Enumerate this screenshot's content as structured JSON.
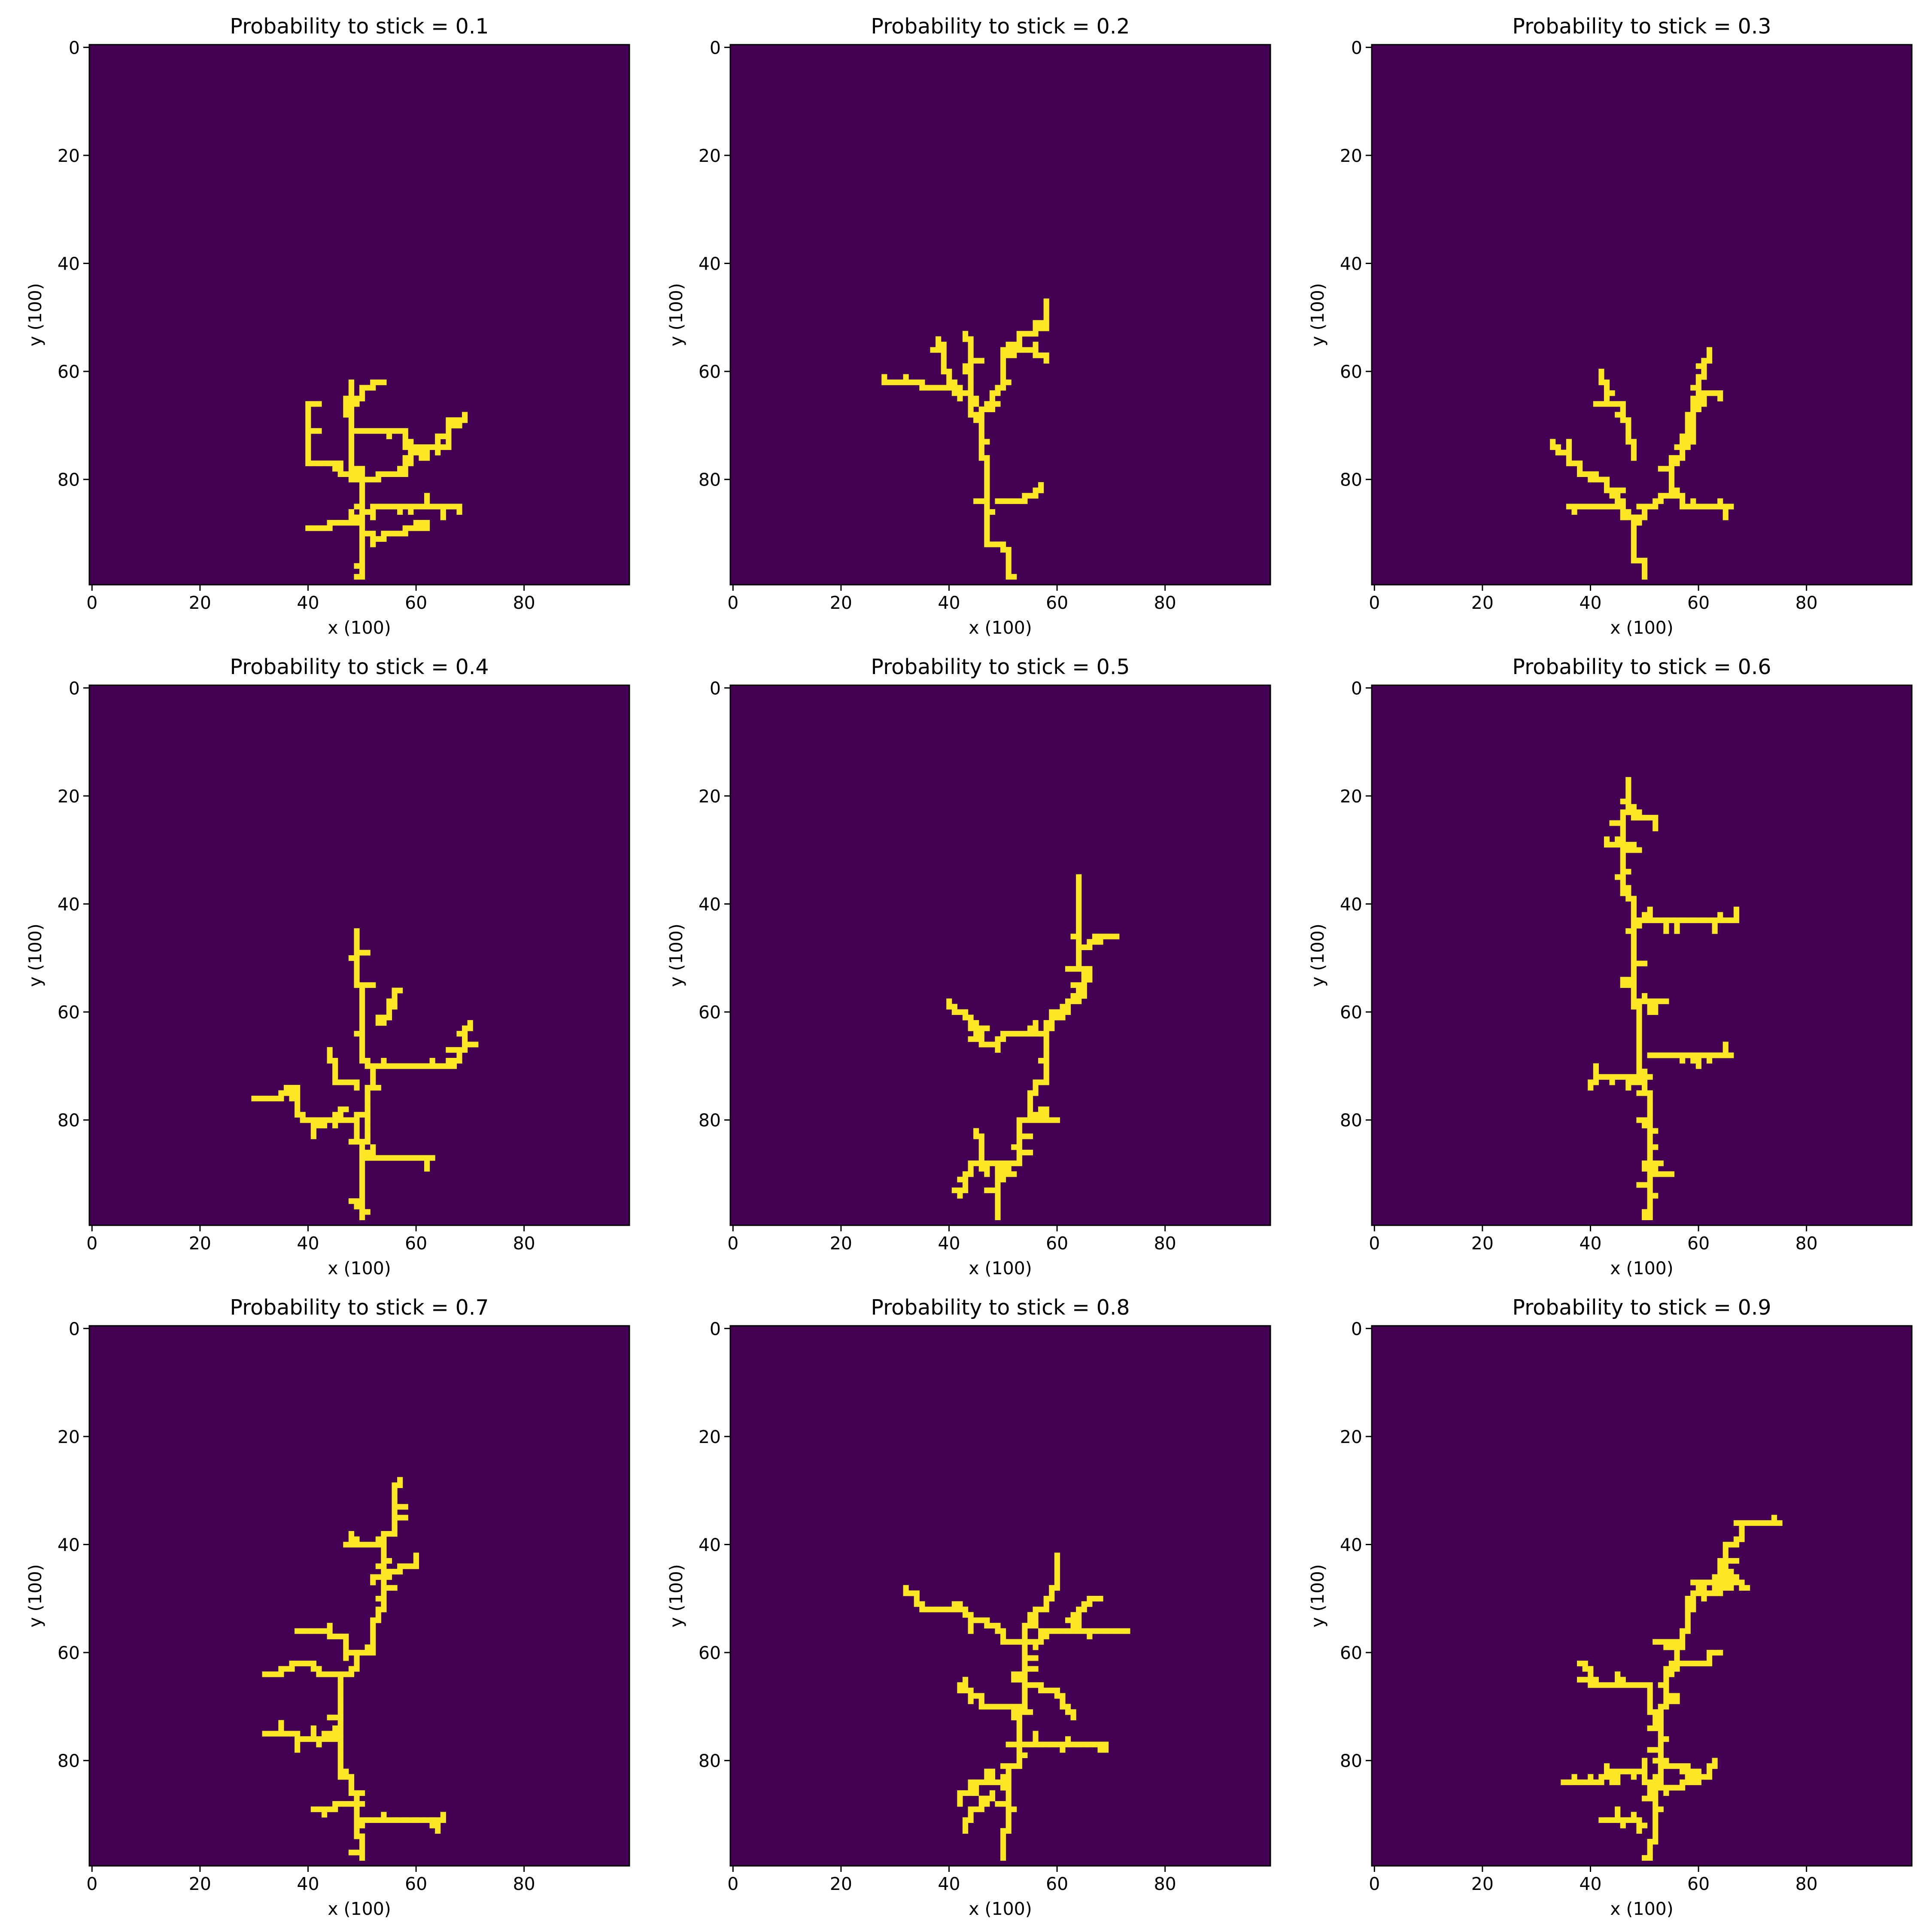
{
  "colors": {
    "background": "#440154",
    "particle": "#fde725",
    "frame": "#000000"
  },
  "chart_data": [
    {
      "type": "heatmap",
      "title": "Probability to stick = 0.1",
      "xlabel": "x (100)",
      "ylabel": "y (100)",
      "xlim": [
        0,
        99
      ],
      "ylim": [
        99,
        0
      ],
      "xticks": [
        "0",
        "20",
        "40",
        "60",
        "80"
      ],
      "yticks": [
        "0",
        "20",
        "40",
        "60",
        "80"
      ],
      "grid": false,
      "grid_size": 100,
      "seed": 11,
      "walks": [
        [
          [
            49,
            98
          ],
          [
            50,
            80
          ],
          [
            48,
            62
          ]
        ],
        [
          [
            50,
            80
          ],
          [
            64,
            72
          ],
          [
            69,
            68
          ]
        ],
        [
          [
            50,
            80
          ],
          [
            40,
            72
          ],
          [
            42,
            66
          ]
        ],
        [
          [
            50,
            88
          ],
          [
            40,
            89
          ]
        ],
        [
          [
            51,
            86
          ],
          [
            68,
            85
          ]
        ],
        [
          [
            52,
            92
          ],
          [
            62,
            88
          ]
        ],
        [
          [
            48,
            74
          ],
          [
            58,
            71
          ],
          [
            66,
            74
          ]
        ],
        [
          [
            47,
            68
          ],
          [
            52,
            62
          ]
        ]
      ]
    },
    {
      "type": "heatmap",
      "title": "Probability to stick = 0.2",
      "xlabel": "x (100)",
      "ylabel": "y (100)",
      "xlim": [
        0,
        99
      ],
      "ylim": [
        99,
        0
      ],
      "xticks": [
        "0",
        "20",
        "40",
        "60",
        "80"
      ],
      "yticks": [
        "0",
        "20",
        "40",
        "60",
        "80"
      ],
      "grid": false,
      "grid_size": 100,
      "seed": 23,
      "walks": [
        [
          [
            52,
            98
          ],
          [
            47,
            80
          ],
          [
            46,
            70
          ],
          [
            44,
            58
          ],
          [
            43,
            53
          ]
        ],
        [
          [
            46,
            70
          ],
          [
            50,
            62
          ],
          [
            56,
            52
          ],
          [
            58,
            47
          ]
        ],
        [
          [
            44,
            64
          ],
          [
            36,
            63
          ],
          [
            28,
            62
          ]
        ],
        [
          [
            49,
            84
          ],
          [
            57,
            82
          ]
        ],
        [
          [
            45,
            66
          ],
          [
            40,
            60
          ],
          [
            38,
            54
          ]
        ],
        [
          [
            54,
            56
          ],
          [
            58,
            58
          ]
        ]
      ]
    },
    {
      "type": "heatmap",
      "title": "Probability to stick = 0.3",
      "xlabel": "x (100)",
      "ylabel": "y (100)",
      "xlim": [
        0,
        99
      ],
      "ylim": [
        99,
        0
      ],
      "xticks": [
        "0",
        "20",
        "40",
        "60",
        "80"
      ],
      "yticks": [
        "0",
        "20",
        "40",
        "60",
        "80"
      ],
      "grid": false,
      "grid_size": 100,
      "seed": 37,
      "walks": [
        [
          [
            50,
            98
          ],
          [
            48,
            88
          ],
          [
            42,
            80
          ],
          [
            33,
            73
          ]
        ],
        [
          [
            48,
            88
          ],
          [
            55,
            80
          ],
          [
            59,
            72
          ],
          [
            62,
            56
          ]
        ],
        [
          [
            45,
            84
          ],
          [
            36,
            85
          ]
        ],
        [
          [
            55,
            82
          ],
          [
            66,
            85
          ]
        ],
        [
          [
            48,
            76
          ],
          [
            44,
            66
          ],
          [
            42,
            60
          ]
        ],
        [
          [
            57,
            74
          ],
          [
            64,
            64
          ]
        ]
      ]
    },
    {
      "type": "heatmap",
      "title": "Probability to stick = 0.4",
      "xlabel": "x (100)",
      "ylabel": "y (100)",
      "xlim": [
        0,
        99
      ],
      "ylim": [
        99,
        0
      ],
      "xticks": [
        "0",
        "20",
        "40",
        "60",
        "80"
      ],
      "yticks": [
        "0",
        "20",
        "40",
        "60",
        "80"
      ],
      "grid": false,
      "grid_size": 100,
      "seed": 41,
      "walks": [
        [
          [
            50,
            98
          ],
          [
            50,
            84
          ],
          [
            52,
            72
          ],
          [
            50,
            58
          ],
          [
            49,
            45
          ]
        ],
        [
          [
            50,
            84
          ],
          [
            40,
            80
          ],
          [
            38,
            74
          ],
          [
            30,
            76
          ]
        ],
        [
          [
            52,
            72
          ],
          [
            62,
            70
          ],
          [
            70,
            62
          ]
        ],
        [
          [
            50,
            88
          ],
          [
            63,
            87
          ]
        ],
        [
          [
            47,
            78
          ],
          [
            41,
            83
          ]
        ],
        [
          [
            53,
            62
          ],
          [
            57,
            56
          ]
        ],
        [
          [
            49,
            74
          ],
          [
            44,
            67
          ]
        ]
      ]
    },
    {
      "type": "heatmap",
      "title": "Probability to stick = 0.5",
      "xlabel": "x (100)",
      "ylabel": "y (100)",
      "xlim": [
        0,
        99
      ],
      "ylim": [
        99,
        0
      ],
      "xticks": [
        "0",
        "20",
        "40",
        "60",
        "80"
      ],
      "yticks": [
        "0",
        "20",
        "40",
        "60",
        "80"
      ],
      "grid": false,
      "grid_size": 100,
      "seed": 53,
      "walks": [
        [
          [
            49,
            98
          ],
          [
            52,
            88
          ],
          [
            55,
            76
          ],
          [
            58,
            64
          ],
          [
            66,
            54
          ],
          [
            64,
            35
          ]
        ],
        [
          [
            58,
            64
          ],
          [
            46,
            66
          ],
          [
            40,
            58
          ]
        ],
        [
          [
            52,
            88
          ],
          [
            42,
            94
          ]
        ],
        [
          [
            55,
            80
          ],
          [
            60,
            80
          ]
        ],
        [
          [
            65,
            48
          ],
          [
            71,
            46
          ]
        ],
        [
          [
            47,
            90
          ],
          [
            45,
            82
          ]
        ]
      ]
    },
    {
      "type": "heatmap",
      "title": "Probability to stick = 0.6",
      "xlabel": "x (100)",
      "ylabel": "y (100)",
      "xlim": [
        0,
        99
      ],
      "ylim": [
        99,
        0
      ],
      "xticks": [
        "0",
        "20",
        "40",
        "60",
        "80"
      ],
      "yticks": [
        "0",
        "20",
        "40",
        "60",
        "80"
      ],
      "grid": false,
      "grid_size": 100,
      "seed": 67,
      "walks": [
        [
          [
            50,
            98
          ],
          [
            51,
            80
          ],
          [
            49,
            60
          ],
          [
            48,
            40
          ],
          [
            46,
            26
          ],
          [
            47,
            17
          ]
        ],
        [
          [
            51,
            72
          ],
          [
            44,
            72
          ],
          [
            40,
            74
          ]
        ],
        [
          [
            51,
            68
          ],
          [
            60,
            70
          ],
          [
            66,
            68
          ]
        ],
        [
          [
            48,
            43
          ],
          [
            59,
            43
          ],
          [
            67,
            43
          ]
        ],
        [
          [
            49,
            30
          ],
          [
            43,
            28
          ]
        ],
        [
          [
            48,
            56
          ],
          [
            54,
            58
          ]
        ],
        [
          [
            47,
            22
          ],
          [
            52,
            24
          ]
        ],
        [
          [
            50,
            88
          ],
          [
            55,
            90
          ]
        ]
      ]
    },
    {
      "type": "heatmap",
      "title": "Probability to stick = 0.7",
      "xlabel": "x (100)",
      "ylabel": "y (100)",
      "xlim": [
        0,
        99
      ],
      "ylim": [
        99,
        0
      ],
      "xticks": [
        "0",
        "20",
        "40",
        "60",
        "80"
      ],
      "yticks": [
        "0",
        "20",
        "40",
        "60",
        "80"
      ],
      "grid": false,
      "grid_size": 100,
      "seed": 71,
      "walks": [
        [
          [
            50,
            98
          ],
          [
            49,
            86
          ],
          [
            46,
            77
          ],
          [
            46,
            66
          ],
          [
            52,
            58
          ],
          [
            54,
            40
          ],
          [
            57,
            28
          ]
        ],
        [
          [
            46,
            77
          ],
          [
            38,
            75
          ],
          [
            32,
            75
          ]
        ],
        [
          [
            46,
            64
          ],
          [
            38,
            62
          ],
          [
            32,
            64
          ]
        ],
        [
          [
            49,
            91
          ],
          [
            65,
            91
          ]
        ],
        [
          [
            52,
            47
          ],
          [
            60,
            43
          ]
        ],
        [
          [
            48,
            88
          ],
          [
            41,
            89
          ]
        ],
        [
          [
            49,
            60
          ],
          [
            38,
            56
          ]
        ],
        [
          [
            53,
            40
          ],
          [
            48,
            38
          ]
        ]
      ]
    },
    {
      "type": "heatmap",
      "title": "Probability to stick = 0.8",
      "xlabel": "x (100)",
      "ylabel": "y (100)",
      "xlim": [
        0,
        99
      ],
      "ylim": [
        99,
        0
      ],
      "xticks": [
        "0",
        "20",
        "40",
        "60",
        "80"
      ],
      "yticks": [
        "0",
        "20",
        "40",
        "60",
        "80"
      ],
      "grid": false,
      "grid_size": 100,
      "seed": 83,
      "walks": [
        [
          [
            50,
            98
          ],
          [
            51,
            82
          ],
          [
            53,
            70
          ],
          [
            54,
            58
          ],
          [
            58,
            50
          ],
          [
            60,
            42
          ]
        ],
        [
          [
            54,
            58
          ],
          [
            44,
            54
          ],
          [
            38,
            52
          ],
          [
            32,
            48
          ]
        ],
        [
          [
            54,
            58
          ],
          [
            66,
            56
          ],
          [
            73,
            56
          ]
        ],
        [
          [
            51,
            77
          ],
          [
            69,
            77
          ]
        ],
        [
          [
            51,
            82
          ],
          [
            44,
            84
          ],
          [
            42,
            88
          ]
        ],
        [
          [
            52,
            72
          ],
          [
            42,
            66
          ]
        ],
        [
          [
            62,
            54
          ],
          [
            66,
            50
          ]
        ],
        [
          [
            48,
            86
          ],
          [
            43,
            91
          ]
        ],
        [
          [
            52,
            64
          ],
          [
            63,
            71
          ]
        ]
      ]
    },
    {
      "type": "heatmap",
      "title": "Probability to stick = 0.9",
      "xlabel": "x (100)",
      "ylabel": "y (100)",
      "xlim": [
        0,
        99
      ],
      "ylim": [
        99,
        0
      ],
      "xticks": [
        "0",
        "20",
        "40",
        "60",
        "80"
      ],
      "yticks": [
        "0",
        "20",
        "40",
        "60",
        "80"
      ],
      "grid": false,
      "grid_size": 100,
      "seed": 97,
      "walks": [
        [
          [
            50,
            98
          ],
          [
            52,
            86
          ],
          [
            53,
            72
          ],
          [
            56,
            62
          ],
          [
            58,
            52
          ],
          [
            64,
            44
          ],
          [
            68,
            36
          ],
          [
            75,
            36
          ]
        ],
        [
          [
            52,
            86
          ],
          [
            44,
            82
          ],
          [
            35,
            84
          ]
        ],
        [
          [
            53,
            72
          ],
          [
            44,
            66
          ],
          [
            38,
            62
          ]
        ],
        [
          [
            52,
            86
          ],
          [
            63,
            80
          ]
        ],
        [
          [
            56,
            62
          ],
          [
            64,
            60
          ]
        ],
        [
          [
            58,
            52
          ],
          [
            66,
            48
          ]
        ],
        [
          [
            50,
            92
          ],
          [
            42,
            91
          ]
        ],
        [
          [
            52,
            80
          ],
          [
            60,
            84
          ]
        ],
        [
          [
            57,
            56
          ],
          [
            52,
            58
          ]
        ],
        [
          [
            64,
            44
          ],
          [
            68,
            48
          ]
        ]
      ]
    }
  ]
}
